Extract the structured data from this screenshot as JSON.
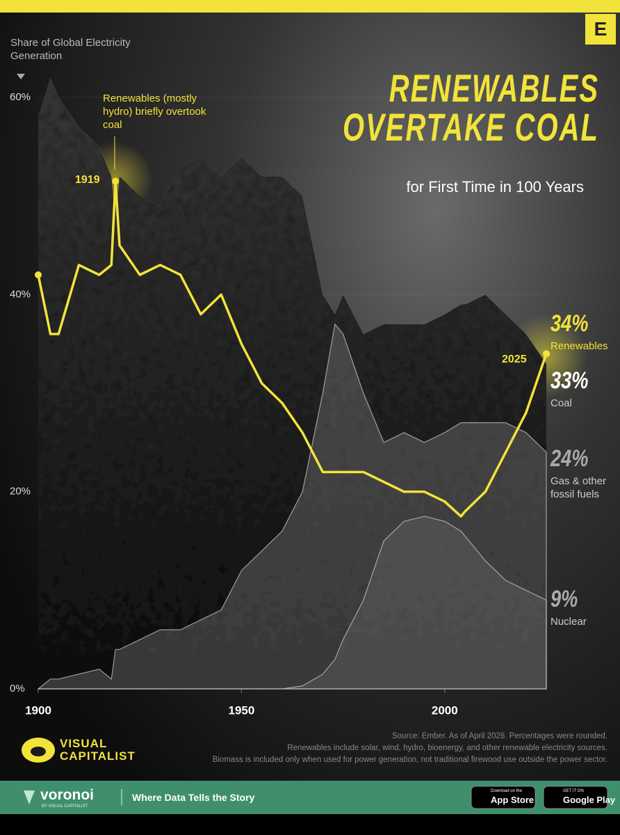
{
  "chart_data": {
    "type": "line-area",
    "title": "RENEWABLES OVERTAKE COAL",
    "subtitle": "for First Time in 100 Years",
    "y_label": "Share of Global Electricity Generation",
    "x": [
      1900,
      1903,
      1905,
      1910,
      1915,
      1918,
      1919,
      1920,
      1925,
      1930,
      1935,
      1940,
      1945,
      1950,
      1955,
      1960,
      1965,
      1970,
      1973,
      1975,
      1980,
      1985,
      1990,
      1995,
      2000,
      2004,
      2005,
      2010,
      2015,
      2020,
      2025
    ],
    "series": [
      {
        "name": "Renewables",
        "kind": "line",
        "color": "#f2e33a",
        "values": [
          42,
          36,
          36,
          43,
          42,
          43,
          51.5,
          45,
          42,
          43,
          42,
          38,
          40,
          35,
          31,
          29,
          26,
          22,
          22,
          22,
          22,
          21,
          20,
          20,
          19,
          17.5,
          18,
          20,
          24,
          28,
          34
        ],
        "value_labels": [
          null,
          null,
          null,
          null,
          null,
          null,
          null,
          null,
          null,
          null,
          null,
          null,
          null,
          null,
          null,
          null,
          null,
          null,
          null,
          null,
          null,
          null,
          null,
          null,
          null,
          null,
          null,
          null,
          null,
          null,
          "34%"
        ]
      },
      {
        "name": "Coal",
        "kind": "area",
        "color": "#2a2a2a",
        "values": [
          58,
          62,
          60,
          57,
          55,
          52,
          47,
          52,
          50,
          49,
          53,
          54,
          52,
          54,
          52,
          52,
          50,
          40,
          38,
          40,
          36,
          37,
          37,
          37,
          38,
          39,
          39,
          40,
          38,
          36,
          33
        ],
        "value_labels": [
          null,
          null,
          null,
          null,
          null,
          null,
          null,
          null,
          null,
          null,
          null,
          null,
          null,
          null,
          null,
          null,
          null,
          null,
          null,
          null,
          null,
          null,
          null,
          null,
          null,
          null,
          null,
          null,
          null,
          null,
          "33%"
        ]
      },
      {
        "name": "Gas & other fossil fuels",
        "kind": "area",
        "color": "#8a8a8a",
        "values": [
          0,
          1,
          1,
          1.5,
          2,
          1,
          4,
          4,
          5,
          6,
          6,
          7,
          8,
          12,
          14,
          16,
          20,
          30,
          37,
          36,
          30,
          25,
          26,
          25,
          26,
          27,
          27,
          27,
          27,
          26,
          24
        ],
        "value_labels": [
          null,
          null,
          null,
          null,
          null,
          null,
          null,
          null,
          null,
          null,
          null,
          null,
          null,
          null,
          null,
          null,
          null,
          null,
          null,
          null,
          null,
          null,
          null,
          null,
          null,
          null,
          null,
          null,
          null,
          null,
          "24%"
        ]
      },
      {
        "name": "Nuclear",
        "kind": "area",
        "color": "#6e6e6e",
        "values": [
          0,
          0,
          0,
          0,
          0,
          0,
          0,
          0,
          0,
          0,
          0,
          0,
          0,
          0,
          0,
          0,
          0.3,
          1.5,
          3,
          5,
          9,
          15,
          17,
          17.5,
          17,
          16,
          15.5,
          13,
          11,
          10,
          9
        ],
        "value_labels": [
          null,
          null,
          null,
          null,
          null,
          null,
          null,
          null,
          null,
          null,
          null,
          null,
          null,
          null,
          null,
          null,
          null,
          null,
          null,
          null,
          null,
          null,
          null,
          null,
          null,
          null,
          null,
          null,
          null,
          null,
          "9%"
        ]
      }
    ],
    "xlim": [
      1900,
      2025
    ],
    "xticks": [
      1900,
      1950,
      2000
    ],
    "ylim": [
      0,
      60
    ],
    "yticks": [
      {
        "value": 0,
        "label": "0%"
      },
      {
        "value": 20,
        "label": "20%"
      },
      {
        "value": 40,
        "label": "40%"
      },
      {
        "value": 60,
        "label": "60%"
      }
    ],
    "grid": true,
    "annotations": [
      {
        "text": "Renewables (mostly hydro) briefly overtook coal"
      },
      {
        "text": "1919"
      },
      {
        "text": "2025"
      }
    ]
  },
  "source": [
    "Source: Ember. As of April 2026. Percentages were rounded.",
    "Renewables include solar, wind, hydro, bioenergy, and other renewable electricity sources.",
    "Biomass is included only when used for power generation, not traditional firewood use outside the power sector."
  ],
  "brand": {
    "logo": "E",
    "name": "VISUAL CAPITALIST"
  },
  "footer": {
    "name": "voronoi",
    "byline": "BY VISUAL CAPITALIST",
    "tagline": "Where Data Tells the Story",
    "apple_small": "Download on the",
    "apple": "App Store",
    "google_small": "GET IT ON",
    "google": "Google Play"
  }
}
